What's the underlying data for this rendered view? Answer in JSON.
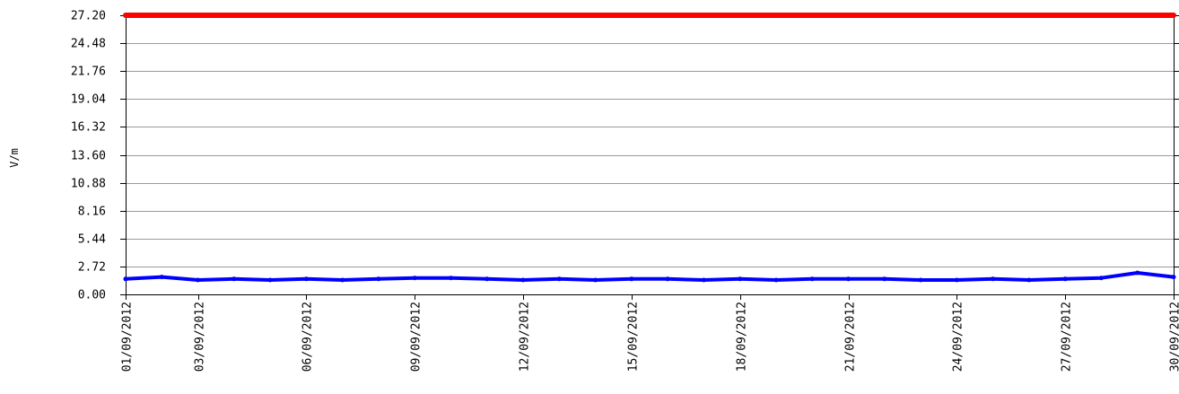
{
  "chart_data": {
    "type": "line",
    "title": "",
    "xlabel": "",
    "ylabel": "V/m",
    "ylim": [
      0,
      27.2
    ],
    "yticks": [
      "0.00",
      "2.72",
      "5.44",
      "8.16",
      "10.88",
      "13.60",
      "16.32",
      "19.04",
      "21.76",
      "24.48",
      "27.20"
    ],
    "xlim": [
      "01/09/2012",
      "30/09/2012"
    ],
    "xticks": [
      "01/09/2012",
      "03/09/2012",
      "06/09/2012",
      "09/09/2012",
      "12/09/2012",
      "15/09/2012",
      "18/09/2012",
      "21/09/2012",
      "24/09/2012",
      "27/09/2012",
      "30/09/2012"
    ],
    "grid": true,
    "series": [
      {
        "color": "#ff0000",
        "x": [
          "01/09/2012",
          "30/09/2012"
        ],
        "values": [
          27.2,
          27.2
        ]
      },
      {
        "color": "#0000ff",
        "x": [
          "01/09/2012",
          "02/09/2012",
          "03/09/2012",
          "04/09/2012",
          "05/09/2012",
          "06/09/2012",
          "07/09/2012",
          "08/09/2012",
          "09/09/2012",
          "10/09/2012",
          "11/09/2012",
          "12/09/2012",
          "13/09/2012",
          "14/09/2012",
          "15/09/2012",
          "16/09/2012",
          "17/09/2012",
          "18/09/2012",
          "19/09/2012",
          "20/09/2012",
          "21/09/2012",
          "22/09/2012",
          "23/09/2012",
          "24/09/2012",
          "25/09/2012",
          "26/09/2012",
          "27/09/2012",
          "28/09/2012",
          "29/09/2012",
          "30/09/2012"
        ],
        "values": [
          1.5,
          1.7,
          1.4,
          1.5,
          1.4,
          1.5,
          1.4,
          1.5,
          1.6,
          1.6,
          1.5,
          1.4,
          1.5,
          1.4,
          1.5,
          1.5,
          1.4,
          1.5,
          1.4,
          1.5,
          1.5,
          1.5,
          1.4,
          1.4,
          1.5,
          1.4,
          1.5,
          1.6,
          2.1,
          1.7
        ]
      }
    ]
  }
}
